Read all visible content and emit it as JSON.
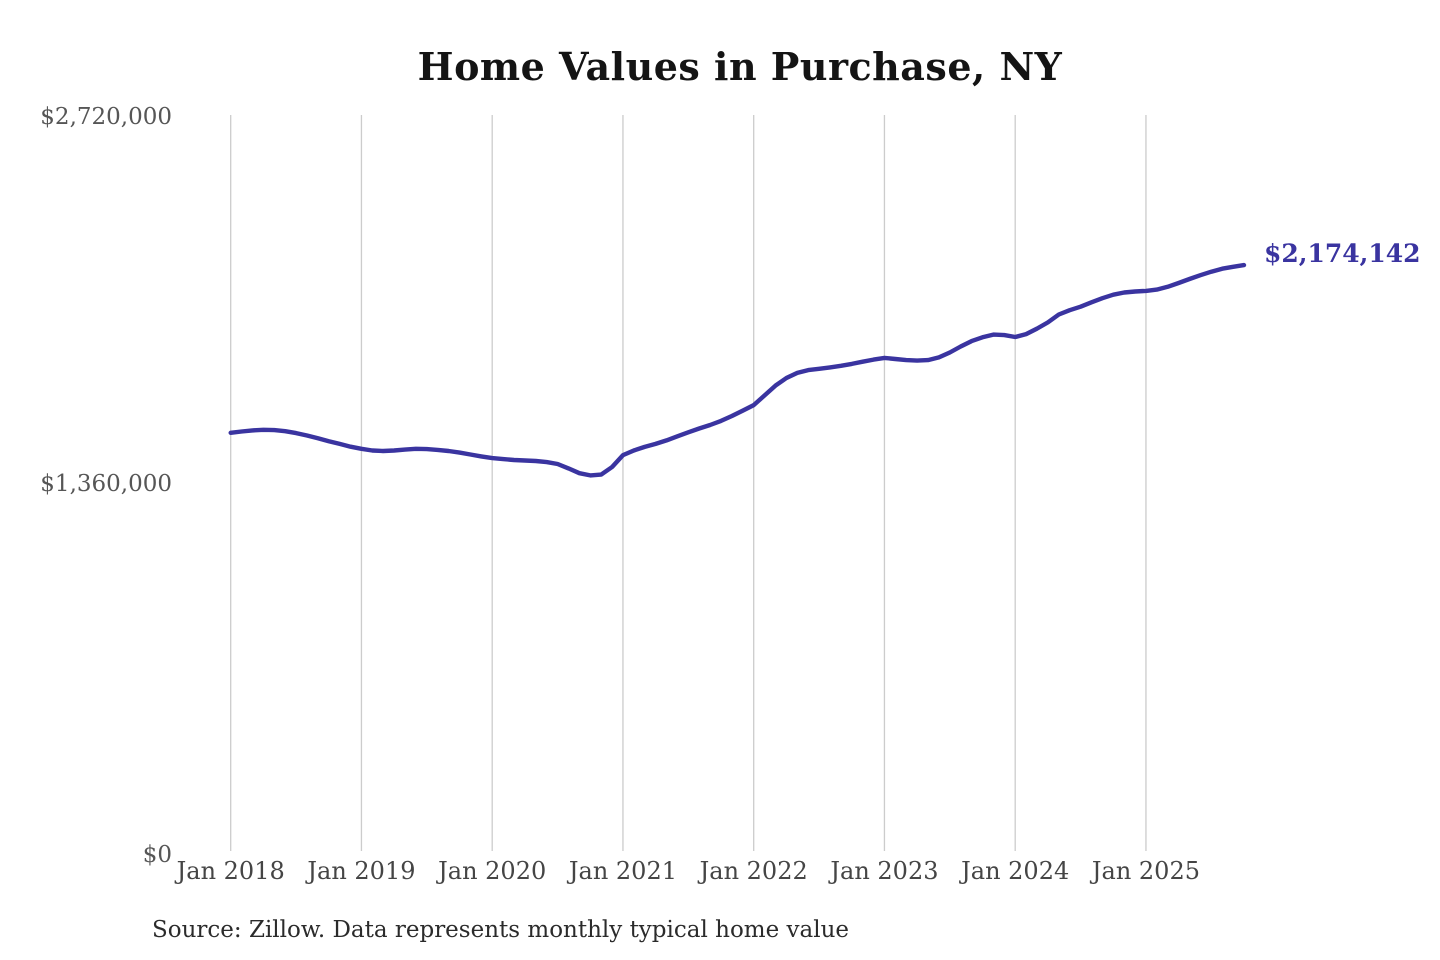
{
  "chart_data": {
    "type": "line",
    "title": "Home Values in Purchase, NY",
    "source_note": "Source: Zillow. Data represents monthly typical home value",
    "x_start": "Jan 2018",
    "x_interval": "monthly",
    "xticks": [
      "Jan 2018",
      "Jan 2019",
      "Jan 2020",
      "Jan 2021",
      "Jan 2022",
      "Jan 2023",
      "Jan 2024",
      "Jan 2025"
    ],
    "yticks": [
      {
        "value": 0,
        "label": "$0"
      },
      {
        "value": 1360000,
        "label": "$1,360,000"
      },
      {
        "value": 2720000,
        "label": "$2,720,000"
      }
    ],
    "ylim": [
      0,
      2720000
    ],
    "grid": "vertical-only",
    "legend": "none",
    "line_color": "#3a34a0",
    "grid_color": "#cccccc",
    "end_annotation": "$2,174,142",
    "end_value": 2174142,
    "values": [
      1556000,
      1561000,
      1565000,
      1567000,
      1566000,
      1562000,
      1555000,
      1546000,
      1536000,
      1525000,
      1515000,
      1505000,
      1497000,
      1491000,
      1489000,
      1491000,
      1494000,
      1497000,
      1496000,
      1493000,
      1489000,
      1483000,
      1476000,
      1469000,
      1463000,
      1459000,
      1456000,
      1454000,
      1452000,
      1448000,
      1441000,
      1425000,
      1407000,
      1399000,
      1402000,
      1430000,
      1474000,
      1491000,
      1504000,
      1515000,
      1528000,
      1543000,
      1558000,
      1572000,
      1585000,
      1600000,
      1618000,
      1638000,
      1658000,
      1694000,
      1730000,
      1758000,
      1777000,
      1787000,
      1792000,
      1797000,
      1803000,
      1810000,
      1818000,
      1826000,
      1832000,
      1828000,
      1824000,
      1822000,
      1824000,
      1834000,
      1852000,
      1874000,
      1894000,
      1908000,
      1918000,
      1916000,
      1909000,
      1920000,
      1940000,
      1963000,
      1992000,
      2008000,
      2021000,
      2037000,
      2052000,
      2065000,
      2073000,
      2077000,
      2079000,
      2084000,
      2094000,
      2108000,
      2123000,
      2137000,
      2150000,
      2161000,
      2168000,
      2174142
    ]
  }
}
